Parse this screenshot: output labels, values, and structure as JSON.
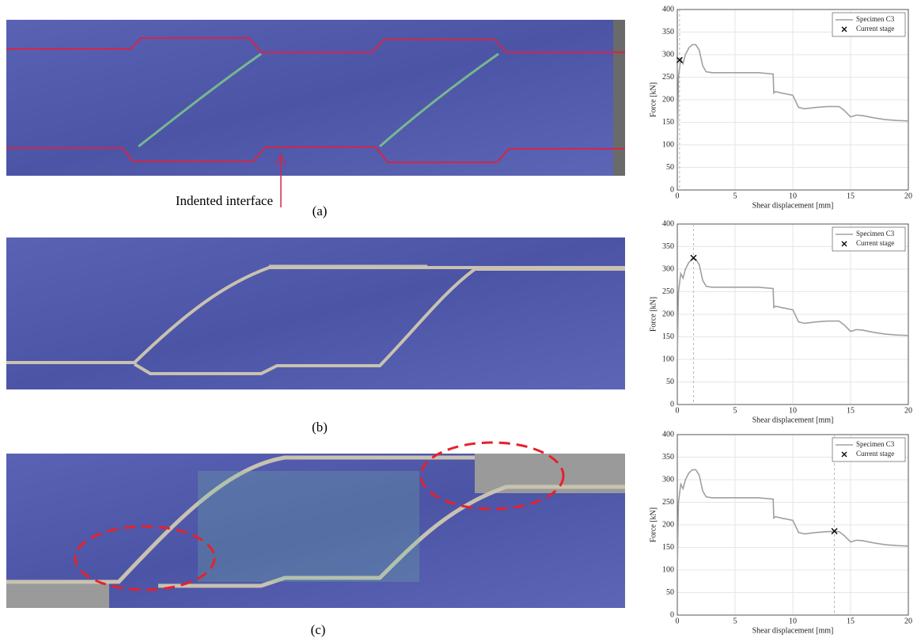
{
  "annotation": "Indented interface",
  "panel_labels": [
    "(a)",
    "(b)",
    "(c)"
  ],
  "chart_data": [
    {
      "type": "line",
      "xlabel": "Shear displacement [mm]",
      "ylabel": "Force [kN]",
      "xlim": [
        0,
        20
      ],
      "ylim": [
        0,
        400
      ],
      "xticks": [
        0,
        5,
        10,
        15,
        20
      ],
      "yticks": [
        0,
        50,
        100,
        150,
        200,
        250,
        300,
        350,
        400
      ],
      "grid": true,
      "legend": "upper right",
      "series": [
        {
          "name": "Specimen C3",
          "color": "#a0a0a0",
          "x": [
            0,
            0.1,
            0.3,
            0.5,
            0.7,
            1.0,
            1.3,
            1.6,
            1.9,
            2.2,
            2.5,
            3,
            5,
            7,
            8.3,
            8.35,
            8.5,
            9,
            10,
            10.5,
            11,
            12,
            13,
            14,
            14.5,
            15,
            15.5,
            16,
            17,
            18,
            19,
            20
          ],
          "values": [
            100,
            250,
            290,
            280,
            300,
            315,
            322,
            322,
            310,
            275,
            262,
            260,
            260,
            260,
            257,
            215,
            218,
            215,
            210,
            183,
            180,
            183,
            185,
            185,
            175,
            162,
            166,
            165,
            160,
            156,
            154,
            153
          ]
        },
        {
          "name": "Current stage",
          "color": "#000000",
          "marker": "x",
          "x": [
            0.2
          ],
          "values": [
            288
          ]
        }
      ]
    },
    {
      "type": "line",
      "xlabel": "Shear displacement [mm]",
      "ylabel": "Force [kN]",
      "xlim": [
        0,
        20
      ],
      "ylim": [
        0,
        400
      ],
      "xticks": [
        0,
        5,
        10,
        15,
        20
      ],
      "yticks": [
        0,
        50,
        100,
        150,
        200,
        250,
        300,
        350,
        400
      ],
      "grid": true,
      "legend": "upper right",
      "series": [
        {
          "name": "Specimen C3",
          "color": "#a0a0a0",
          "x": [
            0,
            0.1,
            0.3,
            0.5,
            0.7,
            1.0,
            1.3,
            1.6,
            1.9,
            2.2,
            2.5,
            3,
            5,
            7,
            8.3,
            8.35,
            8.5,
            9,
            10,
            10.5,
            11,
            12,
            13,
            14,
            14.5,
            15,
            15.5,
            16,
            17,
            18,
            19,
            20
          ],
          "values": [
            100,
            250,
            290,
            280,
            300,
            315,
            322,
            322,
            310,
            275,
            262,
            260,
            260,
            260,
            257,
            215,
            218,
            215,
            210,
            183,
            180,
            183,
            185,
            185,
            175,
            162,
            166,
            165,
            160,
            156,
            154,
            153
          ]
        },
        {
          "name": "Current stage",
          "color": "#000000",
          "marker": "x",
          "x": [
            1.4
          ],
          "values": [
            325
          ]
        }
      ]
    },
    {
      "type": "line",
      "xlabel": "Shear displacement [mm]",
      "ylabel": "Force [kN]",
      "xlim": [
        0,
        20
      ],
      "ylim": [
        0,
        400
      ],
      "xticks": [
        0,
        5,
        10,
        15,
        20
      ],
      "yticks": [
        0,
        50,
        100,
        150,
        200,
        250,
        300,
        350,
        400
      ],
      "grid": true,
      "legend": "upper right",
      "series": [
        {
          "name": "Specimen C3",
          "color": "#a0a0a0",
          "x": [
            0,
            0.1,
            0.3,
            0.5,
            0.7,
            1.0,
            1.3,
            1.6,
            1.9,
            2.2,
            2.5,
            3,
            5,
            7,
            8.3,
            8.35,
            8.5,
            9,
            10,
            10.5,
            11,
            12,
            13,
            14,
            14.5,
            15,
            15.5,
            16,
            17,
            18,
            19,
            20
          ],
          "values": [
            100,
            250,
            290,
            280,
            300,
            315,
            322,
            322,
            310,
            275,
            262,
            260,
            260,
            260,
            257,
            215,
            218,
            215,
            210,
            183,
            180,
            183,
            185,
            185,
            175,
            162,
            166,
            165,
            160,
            156,
            154,
            153
          ]
        },
        {
          "name": "Current stage",
          "color": "#000000",
          "marker": "x",
          "x": [
            13.6
          ],
          "values": [
            186
          ]
        }
      ]
    }
  ]
}
